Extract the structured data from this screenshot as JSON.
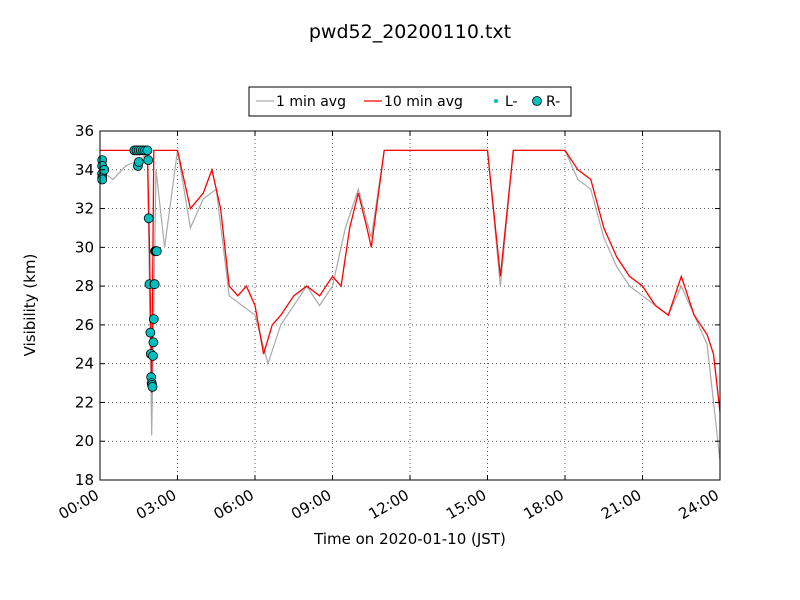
{
  "chart_data": {
    "type": "line",
    "title": "pwd52_20200110.txt",
    "xlabel": "Time on 2020-01-10 (JST)",
    "ylabel": "Visibility (km)",
    "xlim": [
      "00:00",
      "24:00"
    ],
    "ylim": [
      18,
      36
    ],
    "grid": true,
    "legend_position": "top-center",
    "x_ticks": [
      "00:00",
      "03:00",
      "06:00",
      "09:00",
      "12:00",
      "15:00",
      "18:00",
      "21:00",
      "24:00"
    ],
    "y_ticks": [
      18,
      20,
      22,
      24,
      26,
      28,
      30,
      32,
      34,
      36
    ],
    "legend": [
      "1 min avg",
      "10 min avg",
      "L-",
      "R-"
    ],
    "colors": {
      "one_min": "#aaaaaa",
      "ten_min": "#ff0000",
      "l_minus": "#00bfbf",
      "r_minus": "#00bfbf",
      "r_edge": "#000000"
    },
    "series": [
      {
        "name": "10 min avg",
        "color": "#ff0000",
        "x": [
          "00:00",
          "00:10",
          "00:20",
          "00:30",
          "01:00",
          "01:30",
          "01:50",
          "01:55",
          "02:00",
          "02:05",
          "02:10",
          "02:20",
          "03:00",
          "03:30",
          "04:00",
          "04:20",
          "04:40",
          "05:00",
          "05:20",
          "05:40",
          "06:00",
          "06:20",
          "06:40",
          "07:00",
          "07:30",
          "08:00",
          "08:30",
          "09:00",
          "09:20",
          "09:40",
          "10:00",
          "10:20",
          "10:30",
          "11:00",
          "11:30",
          "12:00",
          "13:00",
          "14:00",
          "15:00",
          "15:30",
          "16:00",
          "17:00",
          "18:00",
          "18:30",
          "19:00",
          "19:30",
          "20:00",
          "20:30",
          "21:00",
          "21:30",
          "22:00",
          "22:30",
          "23:00",
          "23:30",
          "23:45",
          "24:00"
        ],
        "y": [
          35.0,
          35.0,
          35.0,
          35.0,
          35.0,
          35.0,
          35.0,
          30.0,
          22.5,
          35.0,
          35.0,
          35.0,
          35.0,
          32.0,
          32.8,
          34.0,
          32.0,
          28.0,
          27.5,
          28.0,
          27.0,
          24.5,
          26.0,
          26.5,
          27.5,
          28.0,
          27.5,
          28.5,
          28.0,
          31.0,
          32.8,
          31.0,
          30.0,
          35.0,
          35.0,
          35.0,
          35.0,
          35.0,
          35.0,
          28.5,
          35.0,
          35.0,
          35.0,
          34.0,
          33.5,
          31.0,
          29.5,
          28.5,
          28.0,
          27.0,
          26.5,
          28.5,
          26.5,
          25.5,
          24.5,
          21.5
        ]
      },
      {
        "name": "1 min avg",
        "color": "#aaaaaa",
        "x": [
          "00:00",
          "00:30",
          "01:00",
          "01:30",
          "01:50",
          "02:00",
          "02:10",
          "02:30",
          "03:00",
          "03:30",
          "04:00",
          "04:30",
          "05:00",
          "05:30",
          "06:00",
          "06:30",
          "07:00",
          "07:30",
          "08:00",
          "08:30",
          "09:00",
          "09:30",
          "10:00",
          "10:30",
          "11:00",
          "11:30",
          "12:00",
          "13:00",
          "14:00",
          "15:00",
          "15:30",
          "16:00",
          "17:00",
          "18:00",
          "18:30",
          "19:00",
          "19:30",
          "20:00",
          "20:30",
          "21:00",
          "21:30",
          "22:00",
          "22:30",
          "23:00",
          "23:30",
          "24:00"
        ],
        "y": [
          34.0,
          33.5,
          34.2,
          34.5,
          34.8,
          20.3,
          34.0,
          30.0,
          35.0,
          31.0,
          32.5,
          33.0,
          27.5,
          27.0,
          26.5,
          24.0,
          26.0,
          27.0,
          28.0,
          27.0,
          28.0,
          31.0,
          33.0,
          30.5,
          35.0,
          35.0,
          35.0,
          35.0,
          35.0,
          35.0,
          28.0,
          35.0,
          35.0,
          35.0,
          33.5,
          33.0,
          30.5,
          29.0,
          28.0,
          27.5,
          27.0,
          26.5,
          28.0,
          26.5,
          25.0,
          19.0
        ]
      },
      {
        "name": "R-",
        "color": "#00bfbf",
        "x": [
          "00:05",
          "00:05",
          "00:05",
          "00:05",
          "00:05",
          "00:10",
          "01:20",
          "01:25",
          "01:30",
          "01:35",
          "01:40",
          "01:45",
          "01:50",
          "01:52",
          "01:53",
          "01:55",
          "01:57",
          "01:58",
          "01:59",
          "02:00",
          "02:01",
          "02:02",
          "02:03",
          "02:04",
          "02:05",
          "02:06",
          "02:07",
          "02:08",
          "02:10",
          "02:12",
          "01:28",
          "01:30"
        ],
        "y": [
          34.5,
          34.2,
          33.8,
          33.6,
          33.5,
          34.0,
          35.0,
          35.0,
          35.0,
          35.0,
          35.0,
          35.0,
          35.0,
          34.5,
          31.5,
          28.1,
          25.6,
          24.5,
          23.3,
          23.0,
          22.9,
          22.8,
          24.4,
          25.1,
          26.3,
          28.1,
          28.1,
          29.8,
          29.8,
          29.8,
          34.2,
          34.4
        ]
      }
    ]
  }
}
